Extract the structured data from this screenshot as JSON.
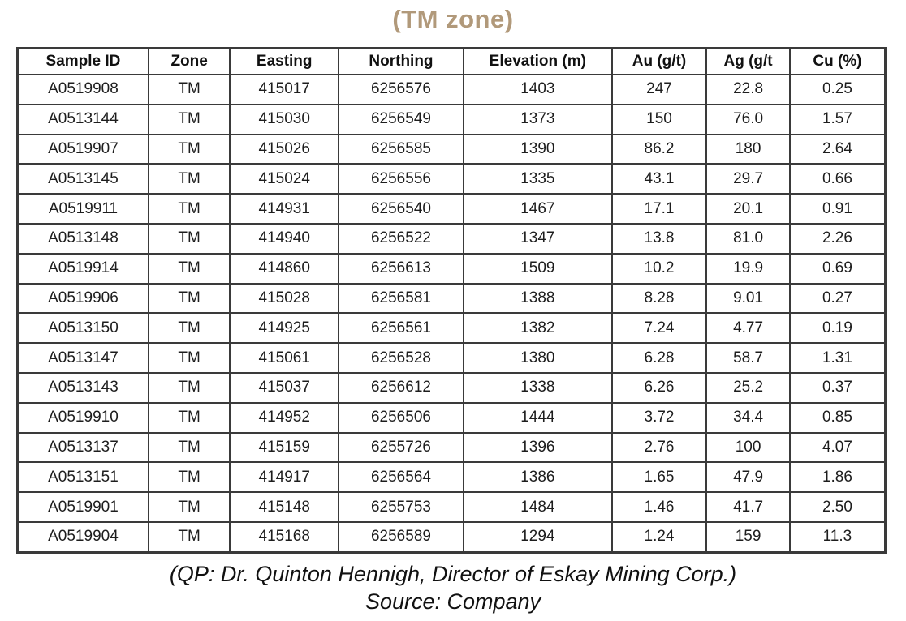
{
  "title": "(TM zone)",
  "title_color": "#b1997a",
  "table": {
    "columns": [
      "Sample ID",
      "Zone",
      "Easting",
      "Northing",
      "Elevation (m)",
      "Au (g/t)",
      "Ag (g/t",
      "Cu (%)"
    ],
    "rows": [
      [
        "A0519908",
        "TM",
        "415017",
        "6256576",
        "1403",
        "247",
        "22.8",
        "0.25"
      ],
      [
        "A0513144",
        "TM",
        "415030",
        "6256549",
        "1373",
        "150",
        "76.0",
        "1.57"
      ],
      [
        "A0519907",
        "TM",
        "415026",
        "6256585",
        "1390",
        "86.2",
        "180",
        "2.64"
      ],
      [
        "A0513145",
        "TM",
        "415024",
        "6256556",
        "1335",
        "43.1",
        "29.7",
        "0.66"
      ],
      [
        "A0519911",
        "TM",
        "414931",
        "6256540",
        "1467",
        "17.1",
        "20.1",
        "0.91"
      ],
      [
        "A0513148",
        "TM",
        "414940",
        "6256522",
        "1347",
        "13.8",
        "81.0",
        "2.26"
      ],
      [
        "A0519914",
        "TM",
        "414860",
        "6256613",
        "1509",
        "10.2",
        "19.9",
        "0.69"
      ],
      [
        "A0519906",
        "TM",
        "415028",
        "6256581",
        "1388",
        "8.28",
        "9.01",
        "0.27"
      ],
      [
        "A0513150",
        "TM",
        "414925",
        "6256561",
        "1382",
        "7.24",
        "4.77",
        "0.19"
      ],
      [
        "A0513147",
        "TM",
        "415061",
        "6256528",
        "1380",
        "6.28",
        "58.7",
        "1.31"
      ],
      [
        "A0513143",
        "TM",
        "415037",
        "6256612",
        "1338",
        "6.26",
        "25.2",
        "0.37"
      ],
      [
        "A0519910",
        "TM",
        "414952",
        "6256506",
        "1444",
        "3.72",
        "34.4",
        "0.85"
      ],
      [
        "A0513137",
        "TM",
        "415159",
        "6255726",
        "1396",
        "2.76",
        "100",
        "4.07"
      ],
      [
        "A0513151",
        "TM",
        "414917",
        "6256564",
        "1386",
        "1.65",
        "47.9",
        "1.86"
      ],
      [
        "A0519901",
        "TM",
        "415148",
        "6255753",
        "1484",
        "1.46",
        "41.7",
        "2.50"
      ],
      [
        "A0519904",
        "TM",
        "415168",
        "6256589",
        "1294",
        "1.24",
        "159",
        "11.3"
      ]
    ]
  },
  "footer": {
    "qp_line": "(QP: Dr. Quinton Hennigh, Director of Eskay Mining Corp.)",
    "source_line": "Source: Company"
  }
}
